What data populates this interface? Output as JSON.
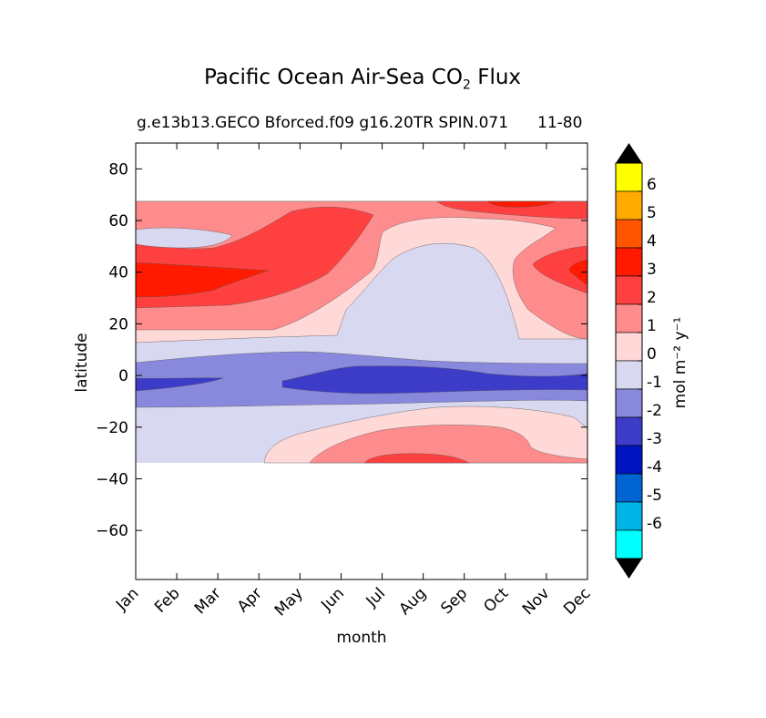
{
  "chart_data": {
    "type": "contourf",
    "title": "Pacific Ocean Air-Sea CO",
    "title_subscript": "2",
    "title_suffix": "Flux",
    "subtitle": "g.e13b13.GECO Bforced.f09 g16.20TR SPIN.071",
    "subtitle_overlay": "11-80",
    "xlabel": "month",
    "ylabel": "latitude",
    "months": [
      "Jan",
      "Feb",
      "Mar",
      "Apr",
      "May",
      "Jun",
      "Jul",
      "Aug",
      "Sep",
      "Oct",
      "Nov",
      "Dec"
    ],
    "yticks": [
      80,
      60,
      40,
      20,
      0,
      -20,
      -40,
      -60
    ],
    "ytick_labels": [
      "80",
      "60",
      "40",
      "20",
      "0",
      "−20",
      "−40",
      "−60"
    ],
    "ylim": [
      -79,
      90
    ],
    "data_lat_range": [
      -34,
      67
    ],
    "colorbar": {
      "label": "mol m⁻² y⁻¹",
      "levels": [
        6,
        5,
        4,
        3,
        2,
        1,
        0,
        -1,
        -2,
        -3,
        -4,
        -5,
        -6
      ],
      "colors": [
        "#ffff00",
        "#ffaa00",
        "#ff5500",
        "#ff1a00",
        "#ff4040",
        "#ff8c8c",
        "#ffd8d8",
        "#d8d8f0",
        "#8888dd",
        "#3c3cc8",
        "#0014c0",
        "#0064d2",
        "#00b4e6",
        "#00ffff"
      ]
    },
    "field_summary": {
      "band_0_5N": "neutral/weak uptake, ~ -1 (equatorial upwelling region shown as -1 to -2 band)",
      "equator_min": -2,
      "north_30_45_winter_max": 3,
      "south_30S_summer_max": 2,
      "north_65_oct_max": 3
    }
  }
}
